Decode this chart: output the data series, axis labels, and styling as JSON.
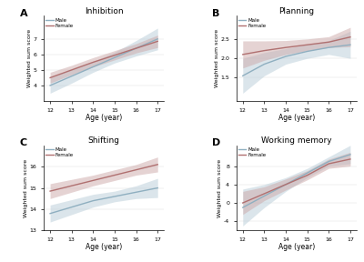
{
  "panels": [
    {
      "label": "A",
      "title": "Inhibition",
      "ylabel": "Weighted sum score",
      "male_line": [
        4.0,
        4.6,
        5.2,
        5.8,
        6.4,
        7.0
      ],
      "male_ci_low": [
        3.5,
        4.15,
        4.85,
        5.45,
        5.9,
        6.3
      ],
      "male_ci_high": [
        4.5,
        5.05,
        5.55,
        6.15,
        6.9,
        7.7
      ],
      "female_line": [
        4.5,
        5.0,
        5.5,
        5.95,
        6.4,
        6.85
      ],
      "female_ci_low": [
        4.15,
        4.7,
        5.2,
        5.65,
        6.1,
        6.45
      ],
      "female_ci_high": [
        4.85,
        5.3,
        5.8,
        6.25,
        6.7,
        7.25
      ],
      "ylim": [
        3.0,
        8.5
      ],
      "yticks": [
        4,
        5,
        6,
        7
      ]
    },
    {
      "label": "B",
      "title": "Planning",
      "ylabel": "Weighted sum score",
      "male_line": [
        1.55,
        1.85,
        2.05,
        2.18,
        2.28,
        2.35
      ],
      "male_ci_low": [
        1.1,
        1.55,
        1.85,
        2.0,
        2.1,
        2.0
      ],
      "male_ci_high": [
        2.0,
        2.15,
        2.25,
        2.36,
        2.46,
        2.7
      ],
      "female_line": [
        2.1,
        2.2,
        2.28,
        2.35,
        2.42,
        2.55
      ],
      "female_ci_low": [
        1.75,
        1.95,
        2.1,
        2.2,
        2.28,
        2.3
      ],
      "female_ci_high": [
        2.45,
        2.45,
        2.46,
        2.5,
        2.56,
        2.8
      ],
      "ylim": [
        0.9,
        3.1
      ],
      "yticks": [
        1.5,
        2.0,
        2.5
      ]
    },
    {
      "label": "C",
      "title": "Shifting",
      "ylabel": "Weighted sum score",
      "male_line": [
        13.8,
        14.1,
        14.4,
        14.6,
        14.8,
        15.0
      ],
      "male_ci_low": [
        13.4,
        13.75,
        14.1,
        14.35,
        14.5,
        14.55
      ],
      "male_ci_high": [
        14.2,
        14.45,
        14.7,
        14.85,
        15.1,
        15.45
      ],
      "female_line": [
        14.85,
        15.1,
        15.35,
        15.6,
        15.85,
        16.1
      ],
      "female_ci_low": [
        14.5,
        14.8,
        15.1,
        15.35,
        15.6,
        15.75
      ],
      "female_ci_high": [
        15.2,
        15.4,
        15.6,
        15.85,
        16.1,
        16.45
      ],
      "ylim": [
        13.0,
        17.0
      ],
      "yticks": [
        13,
        14,
        15,
        16
      ]
    },
    {
      "label": "D",
      "title": "Working memory",
      "ylabel": "Weighted sum score",
      "male_line": [
        -1.0,
        1.5,
        4.0,
        6.5,
        9.0,
        10.5
      ],
      "male_ci_low": [
        -5.0,
        -1.0,
        2.5,
        5.5,
        8.0,
        8.5
      ],
      "male_ci_high": [
        3.0,
        4.0,
        5.5,
        7.5,
        10.0,
        12.5
      ],
      "female_line": [
        0.0,
        2.0,
        4.0,
        6.0,
        8.5,
        9.5
      ],
      "female_ci_low": [
        -2.5,
        0.5,
        2.8,
        5.0,
        7.5,
        8.0
      ],
      "female_ci_high": [
        2.5,
        3.5,
        5.2,
        7.0,
        9.5,
        11.0
      ],
      "ylim": [
        -6.0,
        12.5
      ],
      "yticks": [
        -4,
        0,
        4,
        8
      ]
    }
  ],
  "x": [
    12,
    13,
    14,
    15,
    16,
    17
  ],
  "xticks": [
    12,
    13,
    14,
    15,
    16,
    17
  ],
  "xlabel": "Age (year)",
  "male_color": "#8fafc0",
  "female_color": "#b07070",
  "male_fill": "#b8cdd8",
  "female_fill": "#cca8a8",
  "line_width": 1.0,
  "alpha_fill": 0.5,
  "background_color": "#ffffff"
}
